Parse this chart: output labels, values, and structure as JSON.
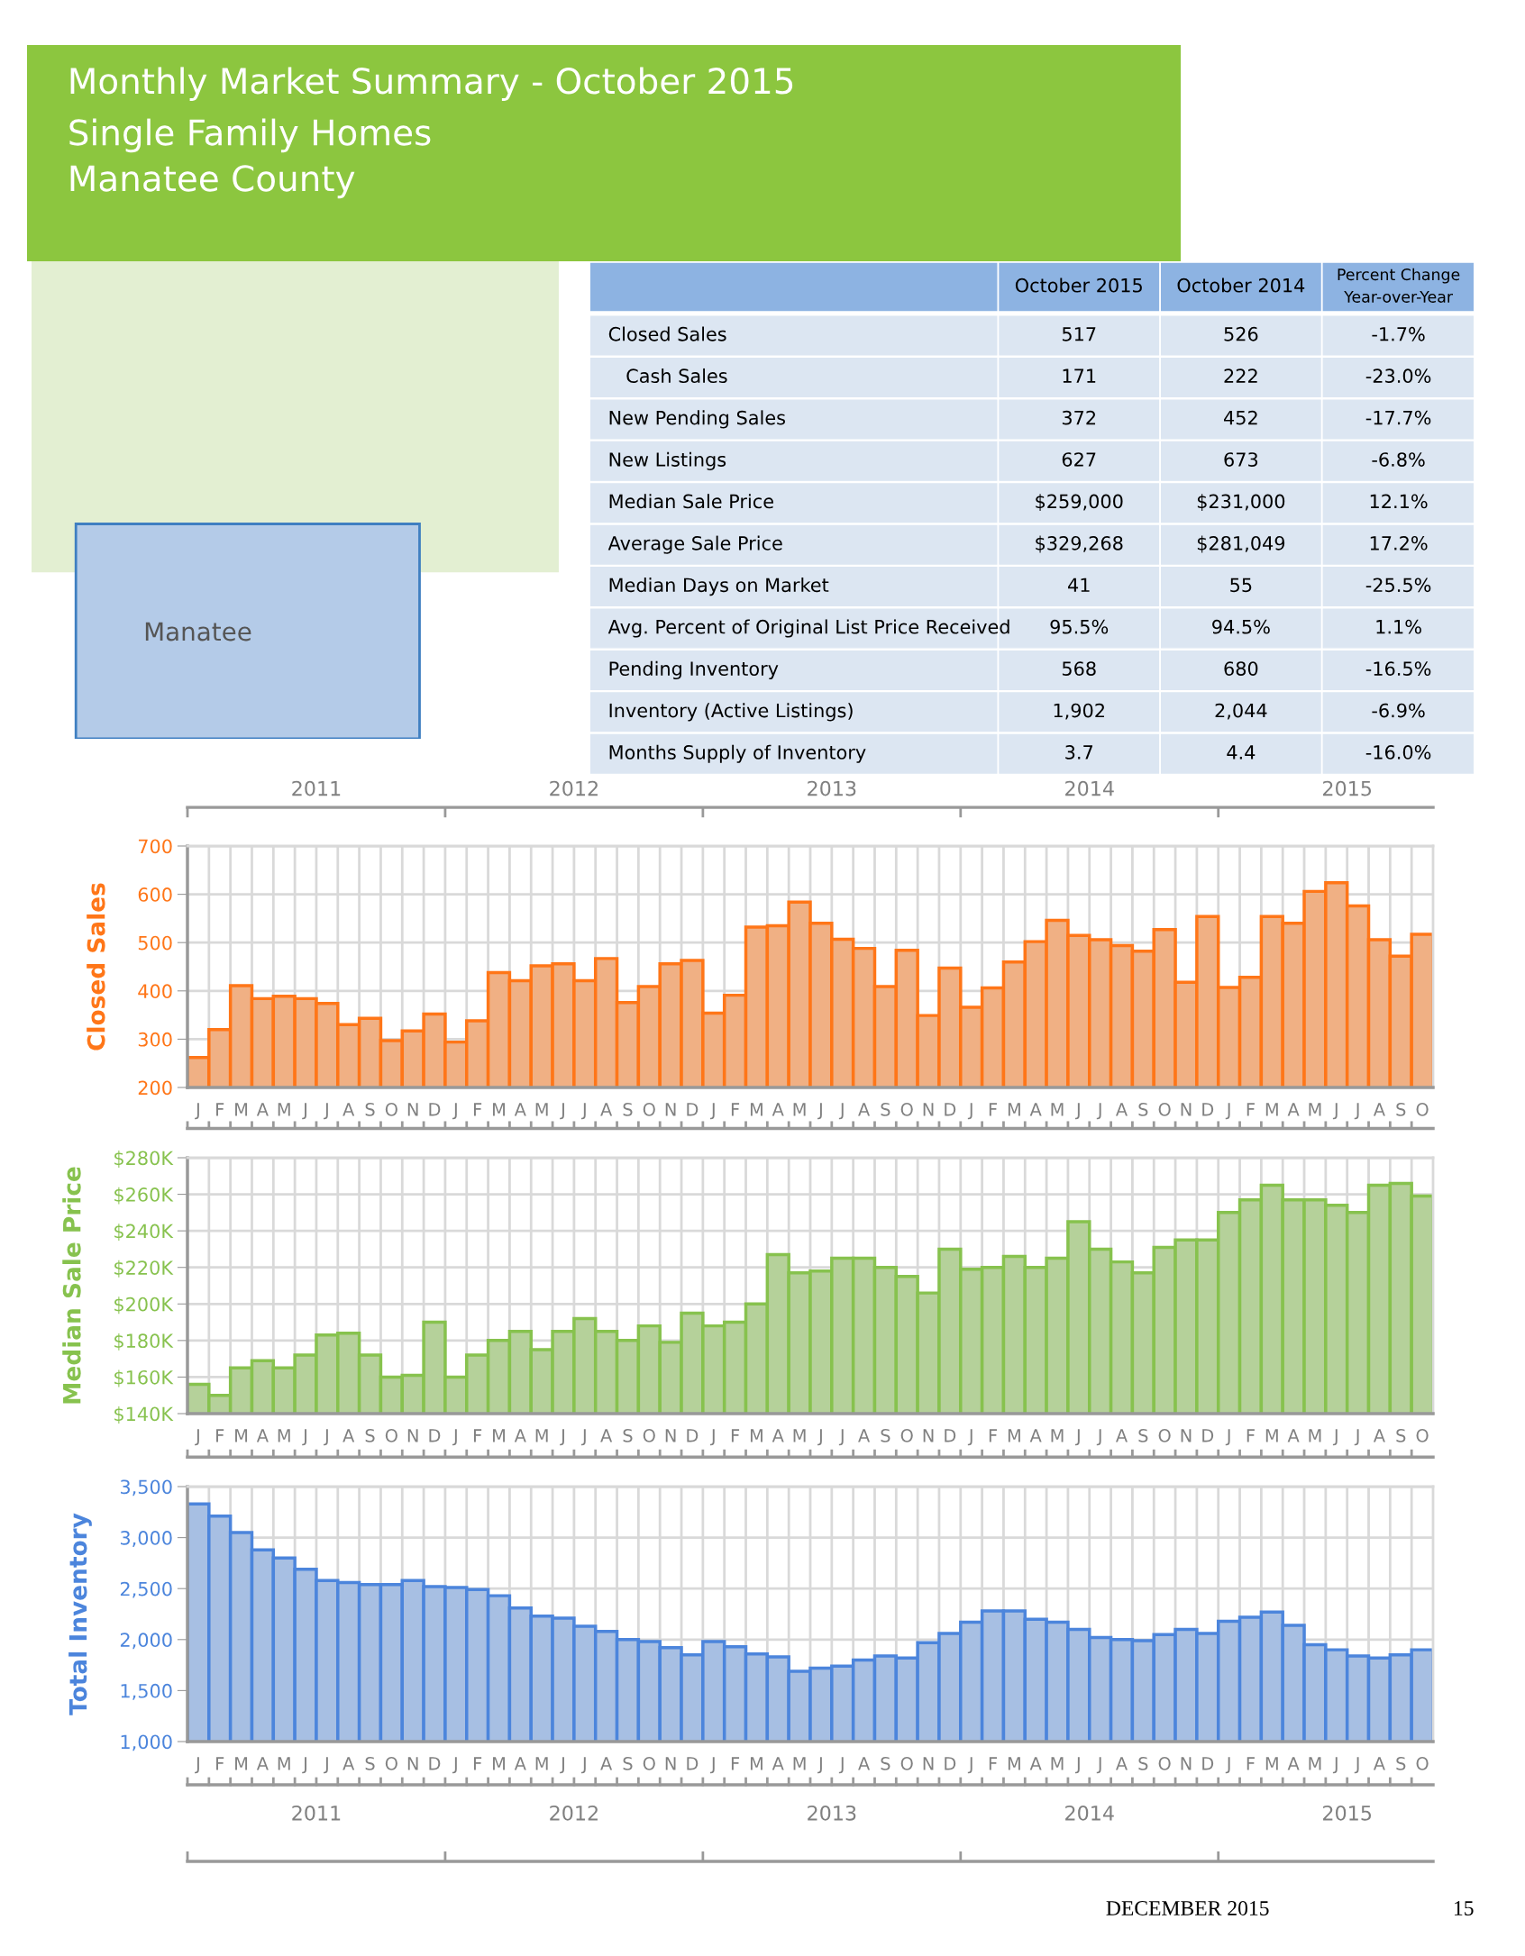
{
  "chart_data": [
    {
      "type": "other",
      "title": "Monthly Market Summary - October 2015",
      "subtitle": "Single Family Homes\nManatee County",
      "categories": [
        null,
        "October 2015",
        "October 2014",
        "Percent Change\nYear-over-Year"
      ],
      "y_categories": [
        "Closed Sales",
        "Cash Sales",
        "New Pending Sales",
        "New Listings",
        "Median Sale Price",
        "Average Sale Price",
        "Median Days on Market",
        "Avg. Percent of Original List Price Received",
        "Pending Inventory",
        "Inventory (Active Listings)",
        "Months Supply of Inventory"
      ],
      "cell_labels": [
        [
          "517",
          "526",
          "-1.7%"
        ],
        [
          "171",
          "222",
          "-23.0%"
        ],
        [
          "372",
          "452",
          "-17.7%"
        ],
        [
          "627",
          "673",
          "-6.8%"
        ],
        [
          "$259,000",
          "$231,000",
          "12.1%"
        ],
        [
          "$329,268",
          "$281,049",
          "17.2%"
        ],
        [
          "41",
          "55",
          "-25.5%"
        ],
        [
          "95.5%",
          "94.5%",
          "1.1%"
        ],
        [
          "568",
          "680",
          "-16.5%"
        ],
        [
          "1,902",
          "2,044",
          "-6.9%"
        ],
        [
          "3.7",
          "4.4",
          "-16.0%"
        ]
      ],
      "annotations": [
        "Manatee",
        "DECEMBER 2015",
        "15"
      ]
    },
    {
      "type": "bar",
      "ylabel": "Closed Sales",
      "color": "#f0b084",
      "categories": [
        "J",
        "F",
        "M",
        "A",
        "M",
        "J",
        "J",
        "A",
        "S",
        "O",
        "N",
        "D",
        "J",
        "F",
        "M",
        "A",
        "M",
        "J",
        "J",
        "A",
        "S",
        "O",
        "N",
        "D",
        "J",
        "F",
        "M",
        "A",
        "M",
        "J",
        "J",
        "A",
        "S",
        "O",
        "N",
        "D",
        "J",
        "F",
        "M",
        "A",
        "M",
        "J",
        "J",
        "A",
        "S",
        "O",
        "N",
        "D",
        "J",
        "F",
        "M",
        "A",
        "M",
        "J",
        "J",
        "A",
        "S",
        "O"
      ],
      "values": [
        262,
        320,
        411,
        384,
        389,
        384,
        374,
        330,
        343,
        297,
        317,
        352,
        294,
        338,
        438,
        421,
        452,
        456,
        421,
        467,
        376,
        409,
        456,
        463,
        354,
        391,
        532,
        535,
        584,
        540,
        507,
        488,
        409,
        484,
        349,
        447,
        366,
        406,
        460,
        502,
        546,
        515,
        506,
        494,
        482,
        527,
        418,
        554,
        407,
        428,
        554,
        540,
        606,
        624,
        576,
        506,
        472,
        517
      ],
      "ylim": [
        200,
        700
      ],
      "yticks": [
        200,
        300,
        400,
        500,
        600,
        700
      ],
      "grid": true,
      "x2lim": [
        2011,
        2015.8333
      ],
      "x2ticks": [
        {
          "value": 2011,
          "label": null
        },
        {
          "value": 2011.5,
          "label": "2011"
        },
        {
          "value": 2012,
          "label": null
        },
        {
          "value": 2012.5,
          "label": "2012"
        },
        {
          "value": 2013,
          "label": null
        },
        {
          "value": 2013.5,
          "label": "2013"
        },
        {
          "value": 2014,
          "label": null
        },
        {
          "value": 2014.5,
          "label": "2014"
        },
        {
          "value": 2015,
          "label": null
        },
        {
          "value": 2015.5,
          "label": "2015"
        }
      ]
    },
    {
      "type": "bar",
      "ylabel": "Median Sale Price",
      "color": "#b5d19a",
      "categories": [
        "J",
        "F",
        "M",
        "A",
        "M",
        "J",
        "J",
        "A",
        "S",
        "O",
        "N",
        "D",
        "J",
        "F",
        "M",
        "A",
        "M",
        "J",
        "J",
        "A",
        "S",
        "O",
        "N",
        "D",
        "J",
        "F",
        "M",
        "A",
        "M",
        "J",
        "J",
        "A",
        "S",
        "O",
        "N",
        "D",
        "J",
        "F",
        "M",
        "A",
        "M",
        "J",
        "J",
        "A",
        "S",
        "O",
        "N",
        "D",
        "J",
        "F",
        "M",
        "A",
        "M",
        "J",
        "J",
        "A",
        "S",
        "O"
      ],
      "values": [
        156000,
        150000,
        165000,
        169000,
        165000,
        172000,
        183000,
        184000,
        172000,
        160000,
        161000,
        190000,
        160000,
        172000,
        180000,
        185000,
        175000,
        185000,
        192000,
        185000,
        180000,
        188000,
        179000,
        195000,
        188000,
        190000,
        200000,
        227000,
        217000,
        218000,
        225000,
        225000,
        220000,
        215000,
        206000,
        230000,
        219000,
        220000,
        226000,
        220000,
        225000,
        245000,
        230000,
        223000,
        217000,
        231000,
        235000,
        235000,
        250000,
        257000,
        265000,
        257000,
        257000,
        254000,
        250000,
        265000,
        266000,
        259000
      ],
      "ylim": [
        140000,
        280000
      ],
      "yticks": [
        {
          "value": 140000,
          "label": "$140K"
        },
        {
          "value": 160000,
          "label": "$160K"
        },
        {
          "value": 180000,
          "label": "$180K"
        },
        {
          "value": 200000,
          "label": "$200K"
        },
        {
          "value": 220000,
          "label": "$220K"
        },
        {
          "value": 240000,
          "label": "$240K"
        },
        {
          "value": 260000,
          "label": "$260K"
        },
        {
          "value": 280000,
          "label": "$280K"
        }
      ],
      "grid": true
    },
    {
      "type": "bar",
      "ylabel": "Total Inventory",
      "color": "#a7bfe3",
      "categories": [
        "J",
        "F",
        "M",
        "A",
        "M",
        "J",
        "J",
        "A",
        "S",
        "O",
        "N",
        "D",
        "J",
        "F",
        "M",
        "A",
        "M",
        "J",
        "J",
        "A",
        "S",
        "O",
        "N",
        "D",
        "J",
        "F",
        "M",
        "A",
        "M",
        "J",
        "J",
        "A",
        "S",
        "O",
        "N",
        "D",
        "J",
        "F",
        "M",
        "A",
        "M",
        "J",
        "J",
        "A",
        "S",
        "O",
        "N",
        "D",
        "J",
        "F",
        "M",
        "A",
        "M",
        "J",
        "J",
        "A",
        "S",
        "O"
      ],
      "values": [
        3330,
        3210,
        3050,
        2880,
        2800,
        2690,
        2580,
        2560,
        2540,
        2540,
        2580,
        2520,
        2510,
        2490,
        2430,
        2310,
        2230,
        2210,
        2130,
        2080,
        2000,
        1980,
        1920,
        1850,
        1980,
        1930,
        1860,
        1830,
        1690,
        1720,
        1740,
        1800,
        1840,
        1820,
        1970,
        2060,
        2170,
        2280,
        2280,
        2200,
        2170,
        2100,
        2020,
        2000,
        1990,
        2050,
        2100,
        2060,
        2180,
        2220,
        2270,
        2140,
        1950,
        1900,
        1840,
        1820,
        1850,
        1900
      ],
      "ylim": [
        1000,
        3500
      ],
      "yticks": [
        {
          "value": 1000,
          "label": "1,000"
        },
        {
          "value": 1500,
          "label": "1,500"
        },
        {
          "value": 2000,
          "label": "2,000"
        },
        {
          "value": 2500,
          "label": "2,500"
        },
        {
          "value": 3000,
          "label": "3,000"
        },
        {
          "value": 3500,
          "label": "3,500"
        }
      ],
      "grid": true,
      "x2lim": [
        2011,
        2015.8333
      ],
      "x2ticks": [
        {
          "value": 2011,
          "label": null
        },
        {
          "value": 2011.5,
          "label": "2011"
        },
        {
          "value": 2012,
          "label": null
        },
        {
          "value": 2012.5,
          "label": "2012"
        },
        {
          "value": 2013,
          "label": null
        },
        {
          "value": 2013.5,
          "label": "2013"
        },
        {
          "value": 2014,
          "label": null
        },
        {
          "value": 2014.5,
          "label": "2014"
        },
        {
          "value": 2015,
          "label": null
        },
        {
          "value": 2015.5,
          "label": "2015"
        }
      ]
    }
  ]
}
